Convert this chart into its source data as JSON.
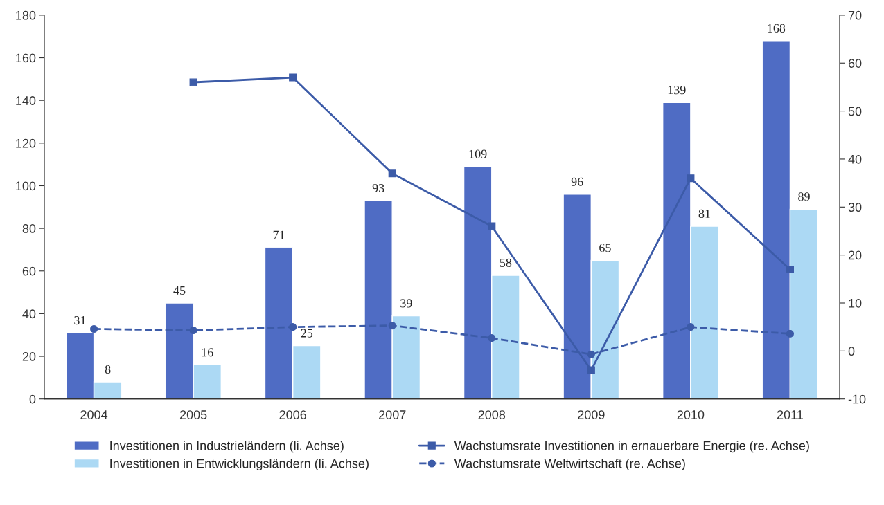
{
  "chart_data": {
    "type": "bar",
    "categories": [
      "2004",
      "2005",
      "2006",
      "2007",
      "2008",
      "2009",
      "2010",
      "2011"
    ],
    "series": [
      {
        "name": "Investitionen in Industrieländern (li. Achse)",
        "color": "#4f6cc4",
        "values": [
          31,
          45,
          71,
          93,
          109,
          96,
          139,
          168
        ],
        "value_labels": [
          "31",
          "45",
          "71",
          "93",
          "109",
          "96",
          "139",
          "168"
        ]
      },
      {
        "name": "Investitionen in Entwicklungsländern (li. Achse)",
        "color": "#acd9f4",
        "values": [
          8,
          16,
          25,
          39,
          58,
          65,
          81,
          89
        ],
        "value_labels": [
          "8",
          "16",
          "25",
          "39",
          "58",
          "65",
          "81",
          "89"
        ]
      },
      {
        "name": "Wachstumsrate Investitionen in ernauerbare Energie (re. Achse)",
        "type": "line",
        "axis": "y2",
        "color": "#3c5ba8",
        "marker": "square",
        "line_style": "solid",
        "values": [
          null,
          56,
          57,
          37,
          26,
          -4,
          36,
          17
        ]
      },
      {
        "name": "Wachstumsrate Weltwirtschaft (re. Achse)",
        "type": "line",
        "axis": "y2",
        "color": "#3c5ba8",
        "marker": "circle",
        "line_style": "dashed",
        "values": [
          4.6,
          4.3,
          5.0,
          5.3,
          2.7,
          -0.7,
          5.0,
          3.6
        ]
      }
    ],
    "ylim": [
      0,
      180
    ],
    "yticks": [
      0,
      20,
      40,
      60,
      80,
      100,
      120,
      140,
      160,
      180
    ],
    "y2lim": [
      -10,
      70
    ],
    "y2ticks": [
      -10,
      0,
      10,
      20,
      30,
      40,
      50,
      60,
      70
    ],
    "grid": false,
    "legend": "bottom"
  }
}
